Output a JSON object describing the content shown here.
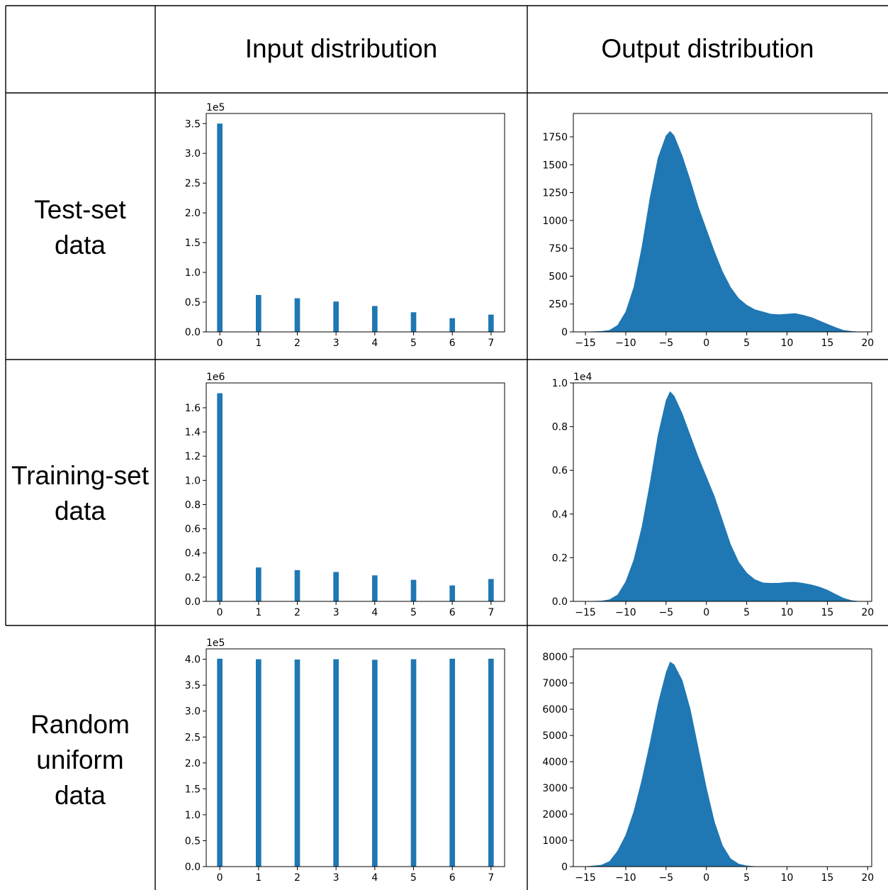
{
  "headers": {
    "input": "Input distribution",
    "output": "Output distribution"
  },
  "row_labels": [
    [
      "Test-set",
      "data"
    ],
    [
      "Training-set",
      "data"
    ],
    [
      "Random",
      "uniform",
      "data"
    ]
  ],
  "colors": {
    "bar": "#1f77b4",
    "grid_lines": "#000000"
  },
  "chart_data": [
    {
      "id": "test-input",
      "type": "bar",
      "title": "",
      "xlabel": "",
      "ylabel": "",
      "categories": [
        0,
        1,
        2,
        3,
        4,
        5,
        6,
        7
      ],
      "values": [
        350000,
        62000,
        56500,
        51000,
        43500,
        33000,
        23000,
        29000
      ],
      "ylim": [
        0,
        367000
      ],
      "xlim": [
        -0.35,
        7.35
      ],
      "yticks": [
        0,
        50000,
        100000,
        150000,
        200000,
        250000,
        300000,
        350000
      ],
      "ytick_labels": [
        "0.0",
        "0.5",
        "1.0",
        "1.5",
        "2.0",
        "2.5",
        "3.0",
        "3.5"
      ],
      "xticks": [
        0,
        1,
        2,
        3,
        4,
        5,
        6,
        7
      ],
      "xtick_labels": [
        "0",
        "1",
        "2",
        "3",
        "4",
        "5",
        "6",
        "7"
      ],
      "offset_label": "1e5"
    },
    {
      "id": "test-output",
      "type": "area",
      "title": "",
      "xlabel": "",
      "ylabel": "",
      "histogram_envelope": {
        "x": [
          -15,
          -13,
          -12,
          -11,
          -10,
          -9,
          -8,
          -7,
          -6,
          -5,
          -4.5,
          -4,
          -3,
          -2,
          -1,
          0,
          1,
          2,
          3,
          4,
          5,
          6,
          7,
          8,
          9,
          10,
          11,
          12,
          13,
          14,
          15,
          16,
          17,
          18,
          19
        ],
        "y": [
          0,
          5,
          15,
          60,
          180,
          400,
          760,
          1200,
          1560,
          1760,
          1800,
          1760,
          1580,
          1360,
          1120,
          920,
          720,
          540,
          400,
          300,
          240,
          200,
          180,
          160,
          155,
          160,
          165,
          150,
          130,
          100,
          70,
          40,
          15,
          5,
          0
        ]
      },
      "ylim": [
        0,
        1960
      ],
      "xlim": [
        -16.5,
        20.5
      ],
      "yticks": [
        0,
        250,
        500,
        750,
        1000,
        1250,
        1500,
        1750
      ],
      "ytick_labels": [
        "0",
        "250",
        "500",
        "750",
        "1000",
        "1250",
        "1500",
        "1750"
      ],
      "xticks": [
        -15,
        -10,
        -5,
        0,
        5,
        10,
        15,
        20
      ],
      "xtick_labels": [
        "−15",
        "−10",
        "−5",
        "0",
        "5",
        "10",
        "15",
        "20"
      ],
      "offset_label": ""
    },
    {
      "id": "train-input",
      "type": "bar",
      "title": "",
      "xlabel": "",
      "ylabel": "",
      "categories": [
        0,
        1,
        2,
        3,
        4,
        5,
        6,
        7
      ],
      "values": [
        1720000,
        280000,
        258000,
        243000,
        215000,
        178000,
        132000,
        185000
      ],
      "ylim": [
        0,
        1805000
      ],
      "xlim": [
        -0.35,
        7.35
      ],
      "yticks": [
        0,
        200000,
        400000,
        600000,
        800000,
        1000000,
        1200000,
        1400000,
        1600000
      ],
      "ytick_labels": [
        "0.0",
        "0.2",
        "0.4",
        "0.6",
        "0.8",
        "1.0",
        "1.2",
        "1.4",
        "1.6"
      ],
      "xticks": [
        0,
        1,
        2,
        3,
        4,
        5,
        6,
        7
      ],
      "xtick_labels": [
        "0",
        "1",
        "2",
        "3",
        "4",
        "5",
        "6",
        "7"
      ],
      "offset_label": "1e6"
    },
    {
      "id": "train-output",
      "type": "area",
      "title": "",
      "xlabel": "",
      "ylabel": "",
      "histogram_envelope": {
        "x": [
          -15,
          -13,
          -12,
          -11,
          -10,
          -9,
          -8,
          -7,
          -6,
          -5,
          -4.5,
          -4,
          -3,
          -2,
          -1,
          0,
          1,
          2,
          3,
          4,
          5,
          6,
          7,
          8,
          9,
          10,
          11,
          12,
          13,
          14,
          15,
          16,
          17,
          18,
          19
        ],
        "y": [
          0,
          20,
          80,
          300,
          900,
          1900,
          3400,
          5400,
          7600,
          9200,
          9600,
          9400,
          8600,
          7600,
          6600,
          5700,
          4800,
          3700,
          2600,
          1800,
          1300,
          1000,
          850,
          830,
          840,
          870,
          880,
          830,
          760,
          660,
          520,
          330,
          150,
          40,
          0
        ]
      },
      "ylim": [
        0,
        10000
      ],
      "xlim": [
        -16.5,
        20.5
      ],
      "yticks": [
        0,
        2000,
        4000,
        6000,
        8000,
        10000
      ],
      "ytick_labels": [
        "0.0",
        "0.2",
        "0.4",
        "0.6",
        "0.8",
        "1.0"
      ],
      "xticks": [
        -15,
        -10,
        -5,
        0,
        5,
        10,
        15,
        20
      ],
      "xtick_labels": [
        "−15",
        "−10",
        "−5",
        "0",
        "5",
        "10",
        "15",
        "20"
      ],
      "offset_label": "1e4"
    },
    {
      "id": "random-input",
      "type": "bar",
      "title": "",
      "xlabel": "",
      "ylabel": "",
      "categories": [
        0,
        1,
        2,
        3,
        4,
        5,
        6,
        7
      ],
      "values": [
        401000,
        400000,
        399500,
        400000,
        399000,
        400000,
        401000,
        401000
      ],
      "ylim": [
        0,
        420000
      ],
      "xlim": [
        -0.35,
        7.35
      ],
      "yticks": [
        0,
        50000,
        100000,
        150000,
        200000,
        250000,
        300000,
        350000,
        400000
      ],
      "ytick_labels": [
        "0.0",
        "0.5",
        "1.0",
        "1.5",
        "2.0",
        "2.5",
        "3.0",
        "3.5",
        "4.0"
      ],
      "xticks": [
        0,
        1,
        2,
        3,
        4,
        5,
        6,
        7
      ],
      "xtick_labels": [
        "0",
        "1",
        "2",
        "3",
        "4",
        "5",
        "6",
        "7"
      ],
      "offset_label": "1e5"
    },
    {
      "id": "random-output",
      "type": "area",
      "title": "",
      "xlabel": "",
      "ylabel": "",
      "histogram_envelope": {
        "x": [
          -15,
          -13,
          -12,
          -11,
          -10,
          -9,
          -8,
          -7,
          -6,
          -5,
          -4.5,
          -4,
          -3,
          -2,
          -1,
          0,
          1,
          2,
          3,
          4,
          5,
          6,
          7
        ],
        "y": [
          0,
          60,
          200,
          600,
          1200,
          2100,
          3300,
          4700,
          6200,
          7400,
          7800,
          7700,
          7100,
          6000,
          4500,
          3000,
          1700,
          800,
          300,
          100,
          30,
          5,
          0
        ]
      },
      "ylim": [
        0,
        8300
      ],
      "xlim": [
        -16.5,
        20.5
      ],
      "yticks": [
        0,
        1000,
        2000,
        3000,
        4000,
        5000,
        6000,
        7000,
        8000
      ],
      "ytick_labels": [
        "0",
        "1000",
        "2000",
        "3000",
        "4000",
        "5000",
        "6000",
        "7000",
        "8000"
      ],
      "xticks": [
        -15,
        -10,
        -5,
        0,
        5,
        10,
        15,
        20
      ],
      "xtick_labels": [
        "−15",
        "−10",
        "−5",
        "0",
        "5",
        "10",
        "15",
        "20"
      ],
      "offset_label": ""
    }
  ]
}
